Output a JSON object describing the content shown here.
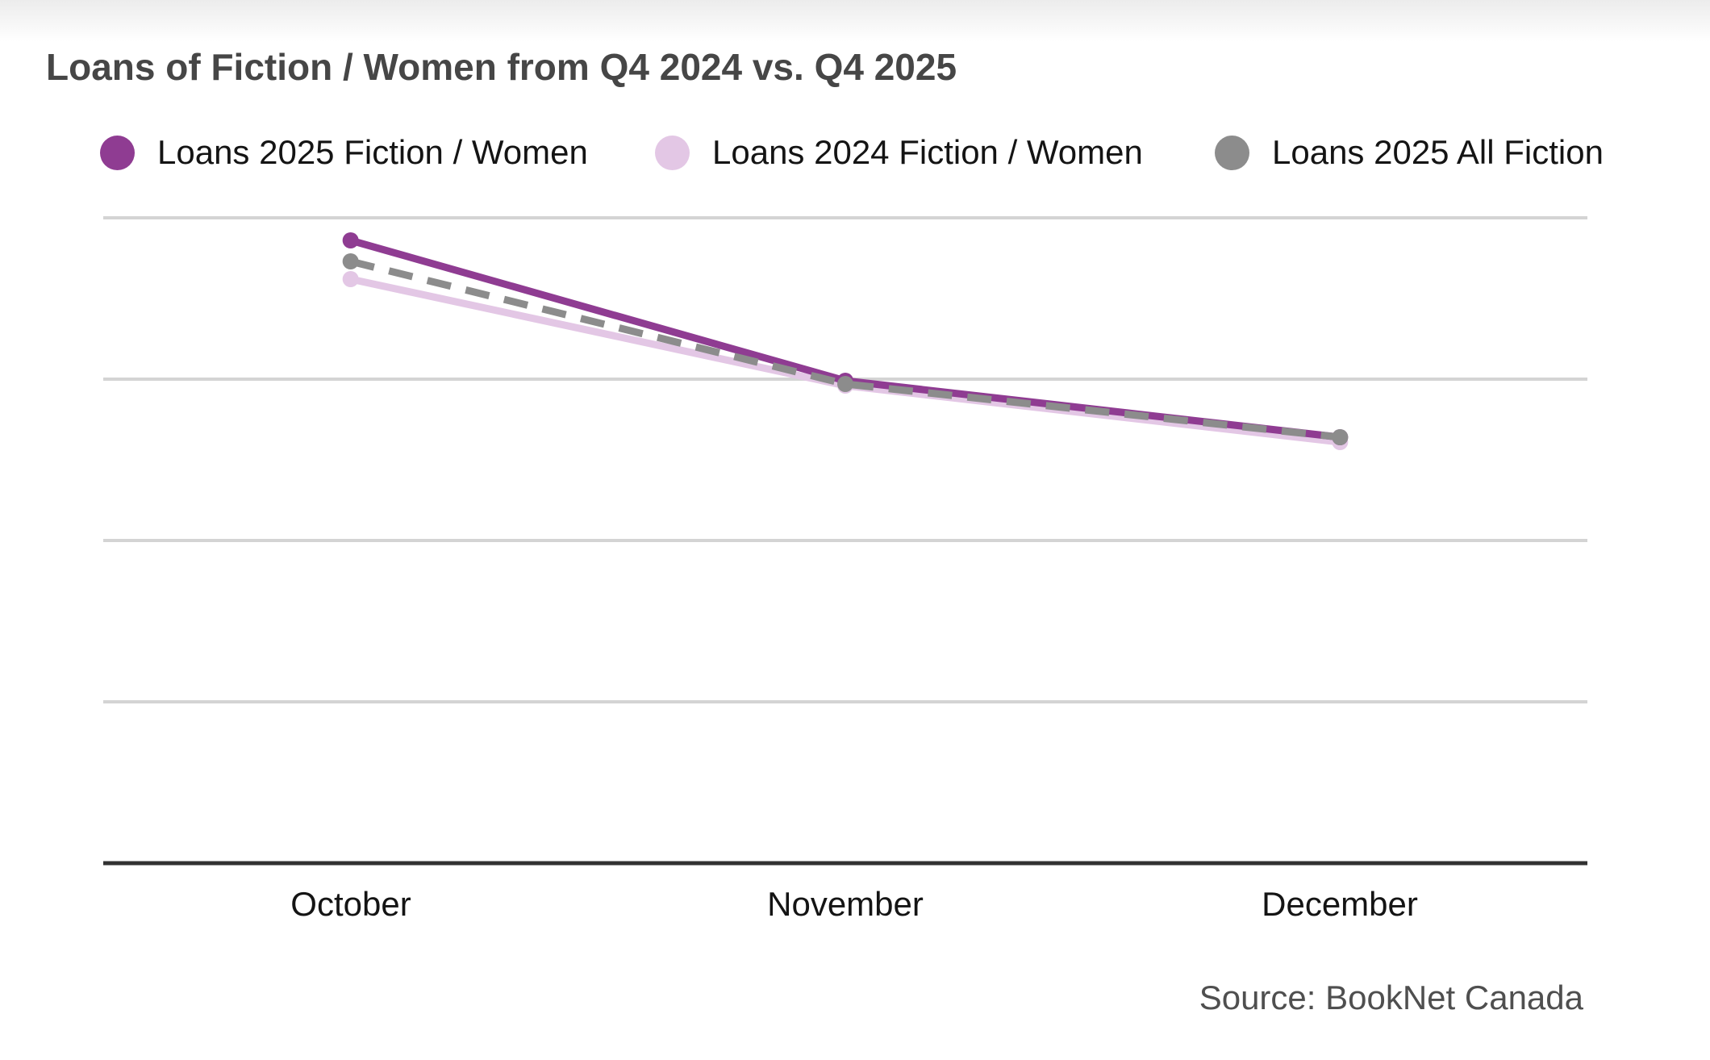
{
  "page": {
    "title": "Loans of Fiction / Women from Q4 2024 vs. Q4 2025",
    "source": "Source: BookNet Canada"
  },
  "legend": {
    "position": "top",
    "items": [
      {
        "label": "Loans 2025 Fiction / Women",
        "color": "#8f3c92",
        "line_style": "solid"
      },
      {
        "label": "Loans 2024 Fiction / Women",
        "color": "#e3c7e5",
        "line_style": "solid"
      },
      {
        "label": "Loans 2025 All Fiction",
        "color": "#8c8c8c",
        "line_style": "dashed"
      }
    ]
  },
  "chart_data": {
    "type": "line",
    "title": "Loans of Fiction / Women from Q4 2024 vs. Q4 2025",
    "categories": [
      "October",
      "November",
      "December"
    ],
    "series": [
      {
        "name": "Loans 2025 Fiction / Women",
        "color": "#8f3c92",
        "line_style": "solid",
        "z_index": 2,
        "values": [
          3.86,
          2.99,
          2.64
        ]
      },
      {
        "name": "Loans 2024 Fiction / Women",
        "color": "#e3c7e5",
        "line_style": "solid",
        "z_index": 1,
        "values": [
          3.62,
          2.96,
          2.61
        ]
      },
      {
        "name": "Loans 2025 All Fiction",
        "color": "#8c8c8c",
        "line_style": "dashed",
        "z_index": 3,
        "values": [
          3.73,
          2.97,
          2.64
        ]
      }
    ],
    "xlabel": "",
    "ylabel": "",
    "ylim": [
      0,
      4.35
    ],
    "y_gridlines": [
      1,
      2,
      3,
      4
    ],
    "y_tick_labels_visible": false,
    "grid": true,
    "legend_position": "top",
    "source": "Source: BookNet Canada"
  },
  "colors": {
    "background": "#ffffff",
    "gridline": "#d4d4d4",
    "x_axis_line": "#323232",
    "title_text": "#464646",
    "label_text": "#141414",
    "source_text": "#4f4f4f"
  }
}
